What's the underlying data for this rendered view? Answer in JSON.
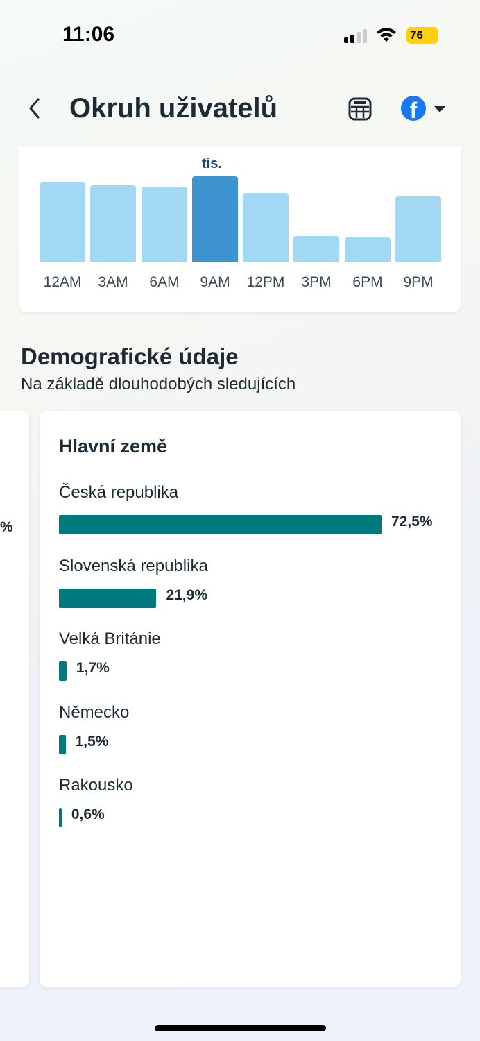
{
  "status_bar": {
    "time": "11:06",
    "battery": "76"
  },
  "header": {
    "title": "Okruh uživatelů"
  },
  "hourly_chart": {
    "type": "bar",
    "highlight_label": "tis.",
    "categories": [
      "12AM",
      "3AM",
      "6AM",
      "9AM",
      "12PM",
      "3PM",
      "6PM",
      "9PM"
    ],
    "relative_values": [
      115,
      110,
      108,
      123,
      99,
      37,
      35,
      94
    ],
    "highlighted_index": 3,
    "colors": {
      "bar": "#a3d8f4",
      "highlight": "#3d94cf"
    }
  },
  "demographics": {
    "title": "Demografické údaje",
    "subtitle": "Na základě dlouhodobých sledujících",
    "left_card_partial_value": "%",
    "countries_card": {
      "title": "Hlavní země",
      "items": [
        {
          "name": "Česká republika",
          "value": 72.5,
          "label": "72,5%"
        },
        {
          "name": "Slovenská republika",
          "value": 21.9,
          "label": "21,9%"
        },
        {
          "name": "Velká Británie",
          "value": 1.7,
          "label": "1,7%"
        },
        {
          "name": "Německo",
          "value": 1.5,
          "label": "1,5%"
        },
        {
          "name": "Rakousko",
          "value": 0.6,
          "label": "0,6%"
        }
      ],
      "bar_color": "#007a7e"
    }
  }
}
